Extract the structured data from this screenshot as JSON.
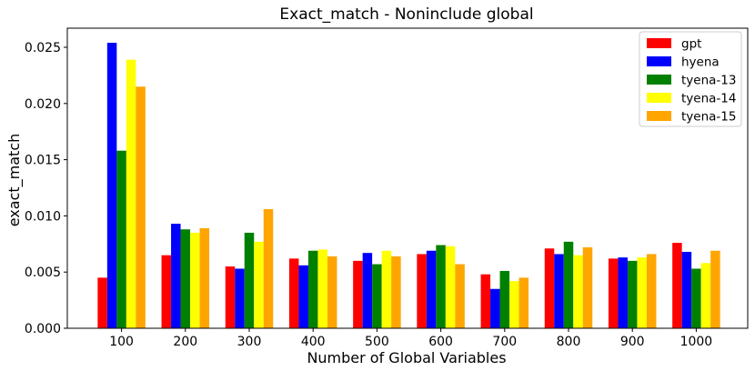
{
  "chart_data": {
    "type": "bar",
    "title": "Exact_match - Noninclude global",
    "xlabel": "Number of Global Variables",
    "ylabel": "exact_match",
    "categories": [
      "100",
      "200",
      "300",
      "400",
      "500",
      "600",
      "700",
      "800",
      "900",
      "1000"
    ],
    "ylim": [
      0,
      0.0267
    ],
    "yticks": [
      "0.000",
      "0.005",
      "0.010",
      "0.015",
      "0.020",
      "0.025"
    ],
    "ytick_values": [
      0,
      0.005,
      0.01,
      0.015,
      0.02,
      0.025
    ],
    "grid": false,
    "legend_position": "top-right",
    "series": [
      {
        "name": "gpt",
        "color": "#ff0000",
        "values": [
          0.0045,
          0.0065,
          0.0055,
          0.0062,
          0.006,
          0.0066,
          0.0048,
          0.0071,
          0.0062,
          0.0076
        ]
      },
      {
        "name": "hyena",
        "color": "#0000ff",
        "values": [
          0.0254,
          0.0093,
          0.0053,
          0.0056,
          0.0067,
          0.0069,
          0.0035,
          0.0066,
          0.0063,
          0.0068
        ]
      },
      {
        "name": "tyena-13",
        "color": "#008000",
        "values": [
          0.0158,
          0.0088,
          0.0085,
          0.0069,
          0.0057,
          0.0074,
          0.0051,
          0.0077,
          0.006,
          0.0053
        ]
      },
      {
        "name": "tyena-14",
        "color": "#ffff00",
        "values": [
          0.0239,
          0.0085,
          0.0077,
          0.007,
          0.0069,
          0.0073,
          0.0042,
          0.0065,
          0.0063,
          0.0058
        ]
      },
      {
        "name": "tyena-15",
        "color": "#ffa500",
        "values": [
          0.0215,
          0.0089,
          0.0106,
          0.0064,
          0.0064,
          0.0057,
          0.0045,
          0.0072,
          0.0066,
          0.0069
        ]
      }
    ]
  }
}
